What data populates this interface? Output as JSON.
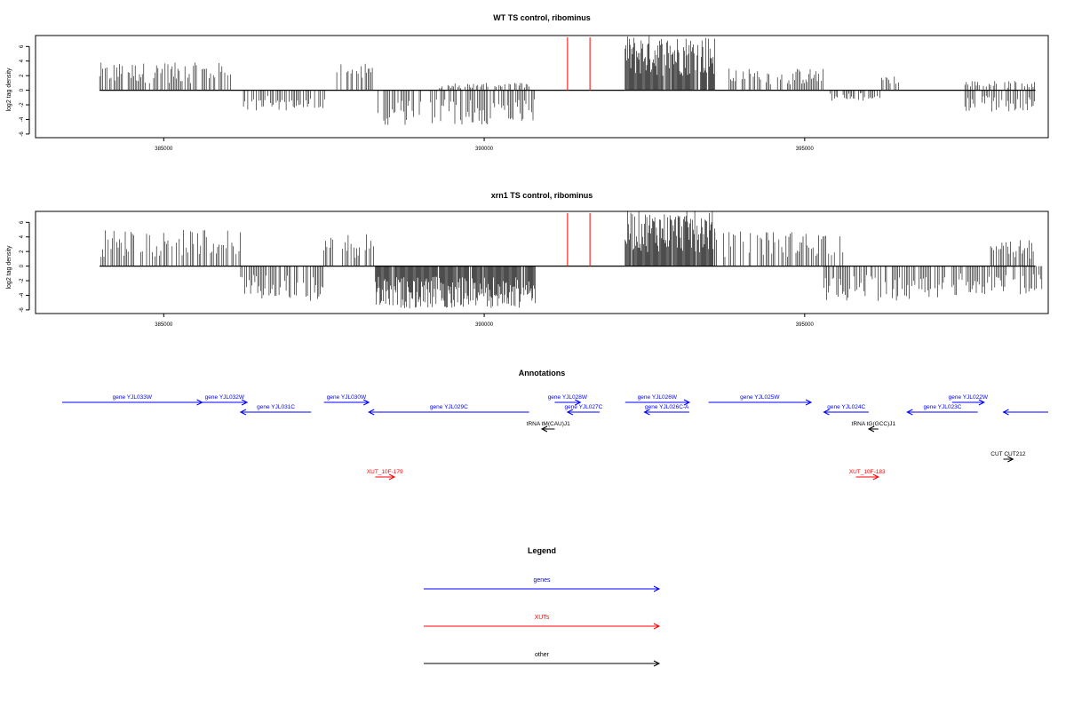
{
  "chart_data": [
    {
      "type": "bar",
      "title": "WT TS control, ribominus",
      "ylabel": "log2 tag density",
      "xlabel": "",
      "xlim": [
        383000,
        398800
      ],
      "ylim": [
        -6.5,
        7.5
      ],
      "xticks": [
        385000,
        390000,
        395000
      ],
      "xtick_labels": [
        "385000",
        "390000",
        "395000"
      ],
      "yticks": [
        -6,
        -4,
        -2,
        0,
        2,
        4,
        6
      ],
      "ytick_labels": [
        "-6",
        "-4",
        "-2",
        "0",
        "2",
        "4",
        "6"
      ],
      "grid": false,
      "marker_lines": {
        "color": "#ff0000",
        "x": [
          391300,
          391650
        ],
        "ylim": [
          -6.5,
          7.5
        ]
      },
      "signal_regions": [
        {
          "start": 384000,
          "end": 386100,
          "strand": "+",
          "max": 3.8
        },
        {
          "start": 386200,
          "end": 387600,
          "strand": "-",
          "max": 2.8
        },
        {
          "start": 387700,
          "end": 388300,
          "strand": "+",
          "max": 3.8
        },
        {
          "start": 388300,
          "end": 390800,
          "strand": "-",
          "max": 4.8
        },
        {
          "start": 389300,
          "end": 390700,
          "strand": "+",
          "max": 1.0
        },
        {
          "start": 392200,
          "end": 393600,
          "strand": "+",
          "max": 7.6
        },
        {
          "start": 393800,
          "end": 395300,
          "strand": "+",
          "max": 3.0
        },
        {
          "start": 395400,
          "end": 396200,
          "strand": "-",
          "max": 1.5
        },
        {
          "start": 396200,
          "end": 396500,
          "strand": "+",
          "max": 2.0
        },
        {
          "start": 397500,
          "end": 398600,
          "strand": "-",
          "max": 3.0
        },
        {
          "start": 397500,
          "end": 398600,
          "strand": "+",
          "max": 1.3
        }
      ]
    },
    {
      "type": "bar",
      "title": "xrn1 TS control, ribominus",
      "ylabel": "log2 tag density",
      "xlabel": "",
      "xlim": [
        383000,
        398800
      ],
      "ylim": [
        -6.5,
        7.5
      ],
      "xticks": [
        385000,
        390000,
        395000
      ],
      "xtick_labels": [
        "385000",
        "390000",
        "395000"
      ],
      "yticks": [
        -6,
        -4,
        -2,
        0,
        2,
        4,
        6
      ],
      "ytick_labels": [
        "-6",
        "-4",
        "-2",
        "0",
        "2",
        "4",
        "6"
      ],
      "grid": false,
      "marker_lines": {
        "color": "#ff0000",
        "x": [
          391300,
          391650
        ],
        "ylim": [
          -6.5,
          7.5
        ]
      },
      "signal_regions": [
        {
          "start": 384000,
          "end": 386200,
          "strand": "+",
          "max": 5.0
        },
        {
          "start": 386200,
          "end": 387500,
          "strand": "-",
          "max": 4.8
        },
        {
          "start": 387500,
          "end": 388300,
          "strand": "+",
          "max": 4.5
        },
        {
          "start": 388300,
          "end": 390800,
          "strand": "-",
          "max": 5.8
        },
        {
          "start": 392200,
          "end": 393600,
          "strand": "+",
          "max": 7.6
        },
        {
          "start": 393600,
          "end": 395600,
          "strand": "+",
          "max": 4.8
        },
        {
          "start": 395300,
          "end": 397200,
          "strand": "-",
          "max": 4.8
        },
        {
          "start": 397300,
          "end": 398500,
          "strand": "-",
          "max": 4.0
        },
        {
          "start": 397900,
          "end": 398600,
          "strand": "+",
          "max": 3.6
        },
        {
          "start": 398500,
          "end": 398700,
          "strand": "-",
          "max": 3.4
        }
      ]
    }
  ],
  "annotations": {
    "title": "Annotations",
    "features": [
      {
        "label": "gene YJL033W",
        "kind": "gene",
        "strand": "+",
        "start": 383250,
        "end": 385600,
        "row": 0
      },
      {
        "label": "gene YJL032W",
        "kind": "gene",
        "strand": "+",
        "start": 385600,
        "end": 386300,
        "row": 0
      },
      {
        "label": "gene YJL031C",
        "kind": "gene",
        "strand": "-",
        "start": 386200,
        "end": 387300,
        "row": 1
      },
      {
        "label": "gene YJL030W",
        "kind": "gene",
        "strand": "+",
        "start": 387500,
        "end": 388200,
        "row": 0
      },
      {
        "label": "gene YJL029C",
        "kind": "gene",
        "strand": "-",
        "start": 388200,
        "end": 390700,
        "row": 1
      },
      {
        "label": "gene YJL028W",
        "kind": "gene",
        "strand": "+",
        "start": 391100,
        "end": 391500,
        "row": 0
      },
      {
        "label": "gene YJL027C",
        "kind": "gene",
        "strand": "-",
        "start": 391300,
        "end": 391800,
        "row": 1
      },
      {
        "label": "gene YJL026W",
        "kind": "gene",
        "strand": "+",
        "start": 392200,
        "end": 393200,
        "row": 0
      },
      {
        "label": "gene YJL026C-A",
        "kind": "gene",
        "strand": "-",
        "start": 392500,
        "end": 393200,
        "row": 1
      },
      {
        "label": "gene YJL025W",
        "kind": "gene",
        "strand": "+",
        "start": 393500,
        "end": 395100,
        "row": 0
      },
      {
        "label": "gene YJL024C",
        "kind": "gene",
        "strand": "-",
        "start": 395300,
        "end": 396000,
        "row": 1
      },
      {
        "label": "gene YJL023C",
        "kind": "gene",
        "strand": "-",
        "start": 396600,
        "end": 397700,
        "row": 1
      },
      {
        "label": "gene YJL022W",
        "kind": "gene",
        "strand": "+",
        "start": 397300,
        "end": 397800,
        "row": 0
      },
      {
        "label": "",
        "kind": "gene",
        "strand": "-",
        "start": 398100,
        "end": 398800,
        "row": 1
      },
      {
        "label": "tRNA tM(CAU)J1",
        "kind": "other",
        "strand": "-",
        "start": 390900,
        "end": 391100,
        "row": 2
      },
      {
        "label": "tRNA tG(GCC)J1",
        "kind": "other",
        "strand": "-",
        "start": 396000,
        "end": 396150,
        "row": 2
      },
      {
        "label": "CUT CUT212",
        "kind": "other",
        "strand": "+",
        "start": 398100,
        "end": 398250,
        "row": 3
      },
      {
        "label": "XUT_10F-179",
        "kind": "xut",
        "strand": "+",
        "start": 388300,
        "end": 388600,
        "row": 4
      },
      {
        "label": "XUT_10F-183",
        "kind": "xut",
        "strand": "+",
        "start": 395800,
        "end": 396150,
        "row": 4
      }
    ]
  },
  "legend": {
    "title": "Legend",
    "entries": [
      {
        "label": "genes",
        "color": "#0000ff"
      },
      {
        "label": "XUTs",
        "color": "#ff0000"
      },
      {
        "label": "other",
        "color": "#000000"
      }
    ]
  },
  "colors": {
    "signal": "#000000",
    "gene": "#0000ff",
    "xut": "#ff0000",
    "other": "#000000",
    "marker": "#ff0000"
  }
}
